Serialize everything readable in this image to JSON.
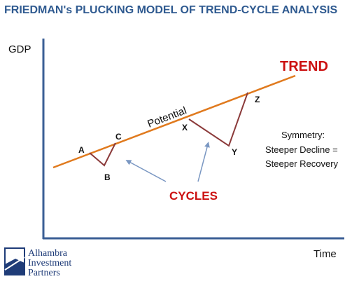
{
  "title": "FRIEDMAN's PLUCKING MODEL OF TREND-CYCLE ANALYSIS",
  "axes": {
    "y_label": "GDP",
    "x_label": "Time"
  },
  "trend_label": "TREND",
  "potential_label": "Potential",
  "cycles_label": "CYCLES",
  "points": {
    "a": "A",
    "b": "B",
    "c": "C",
    "x": "X",
    "y": "Y",
    "z": "Z"
  },
  "symmetry_note": {
    "line1": "Symmetry:",
    "line2": "Steeper Decline =",
    "line3": "Steeper Recovery"
  },
  "logo": {
    "line1": "Alhambra",
    "line2": "Investment",
    "line3": "Partners"
  },
  "colors": {
    "title": "#2f5a90",
    "axis": "#3b5f95",
    "trend_line": "#e07a1e",
    "cycle_line": "#8b3a3a",
    "arrow": "#7a97c2",
    "emphasis": "#cc1111"
  }
}
